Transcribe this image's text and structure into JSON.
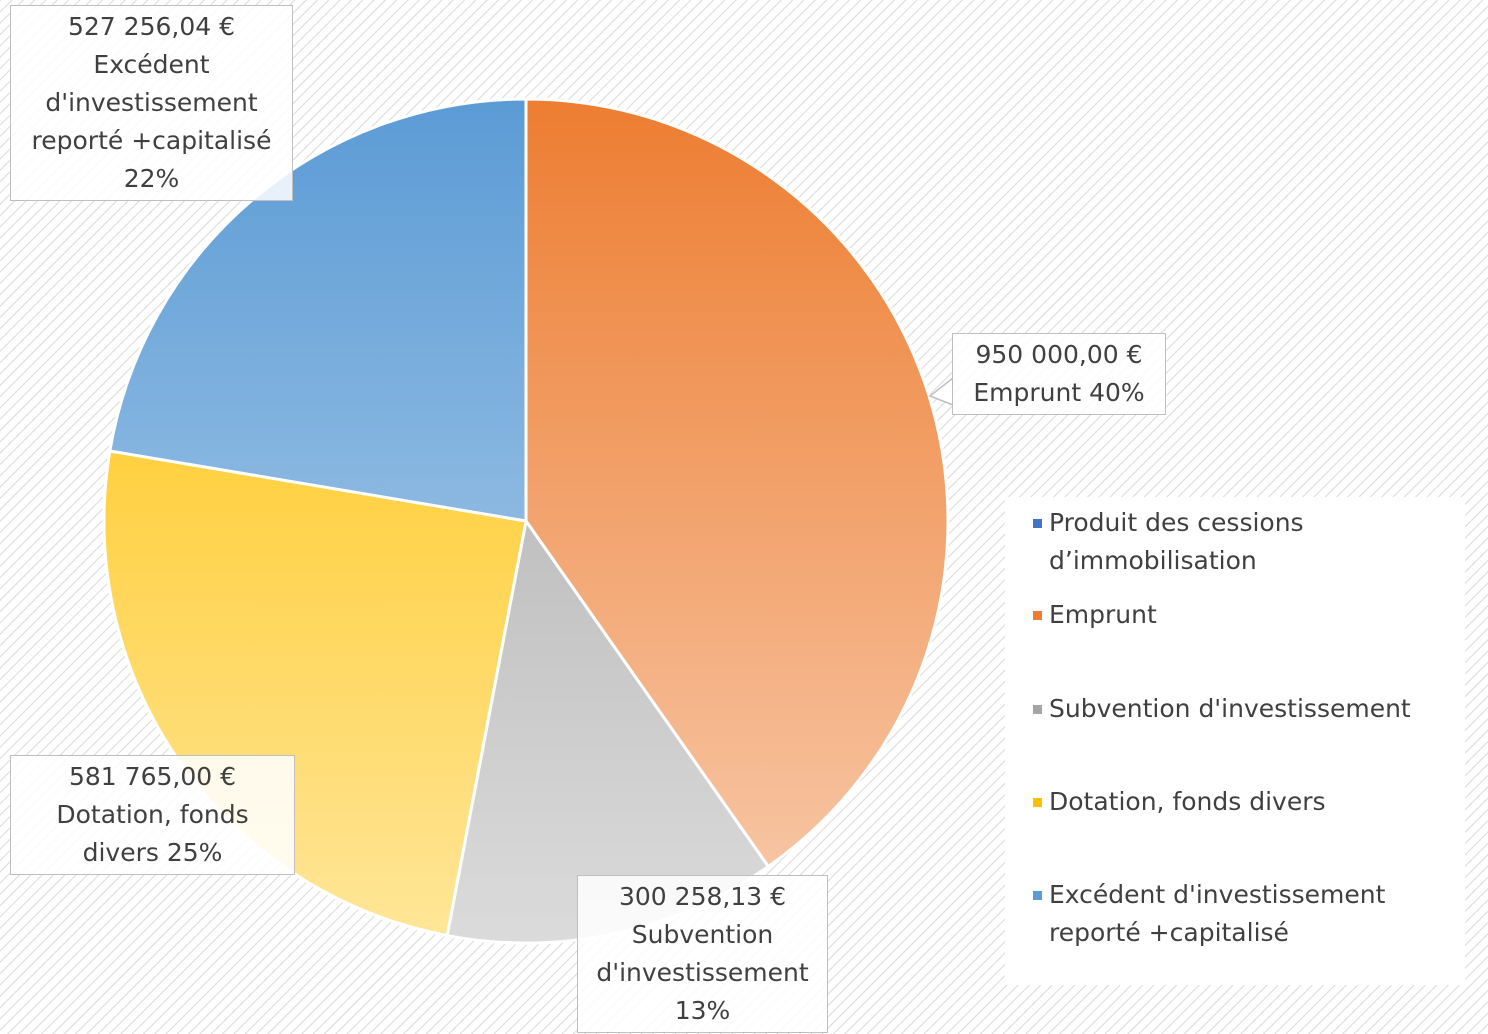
{
  "chart_data": {
    "type": "pie",
    "categories": [
      "Produit des cessions d’immobilisation",
      "Emprunt",
      "Subvention d'investissement",
      "Dotation, fonds divers",
      "Excédent d'investissement reporté +capitalisé"
    ],
    "values": [
      0,
      950000,
      300258.13,
      581765,
      527256.04
    ],
    "value_labels": [
      null,
      "950 000,00 €",
      "300 258,13 €",
      "581 765,00 €",
      "527 256,04 €"
    ],
    "percent_labels": [
      null,
      "40%",
      "13%",
      "25%",
      "22%"
    ],
    "colors": [
      "#4472c4",
      "#ed7d31",
      "#a5a5a5",
      "#ffc000",
      "#5b9bd5"
    ],
    "legend": "right"
  }
}
